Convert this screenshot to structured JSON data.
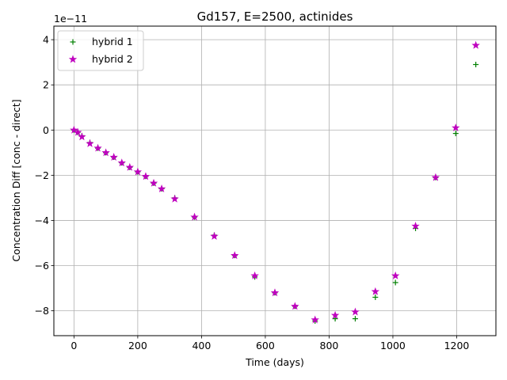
{
  "chart_data": {
    "type": "scatter",
    "title": "Gd157, E=2500, actinides",
    "xlabel": "Time (days)",
    "ylabel": "Concentration Diff [conc - direct]",
    "y_offset_label": "1e−11",
    "xlim": [
      -63,
      1323
    ],
    "ylim": [
      -9.1,
      4.6
    ],
    "y_scale_exponent": -11,
    "xticks": [
      0,
      200,
      400,
      600,
      800,
      1000,
      1200
    ],
    "yticks": [
      -8,
      -6,
      -4,
      -2,
      0,
      2,
      4
    ],
    "xtick_labels": [
      "0",
      "200",
      "400",
      "600",
      "800",
      "1000",
      "1200"
    ],
    "ytick_labels": [
      "−8",
      "−6",
      "−4",
      "−2",
      "0",
      "2",
      "4"
    ],
    "grid": true,
    "legend_position": "top-left",
    "series": [
      {
        "name": "hybrid 1",
        "marker": "plus",
        "color": "#008000",
        "x": [
          0,
          12,
          25,
          50,
          75,
          100,
          125,
          150,
          175,
          200,
          225,
          250,
          275,
          316,
          378,
          440,
          504,
          567,
          630,
          693,
          756,
          819,
          882,
          945,
          1008,
          1071,
          1134,
          1197,
          1260
        ],
        "y": [
          0.0,
          -0.1,
          -0.25,
          -0.55,
          -0.8,
          -1.0,
          -1.2,
          -1.45,
          -1.65,
          -1.85,
          -2.05,
          -2.35,
          -2.6,
          -3.0,
          -3.85,
          -4.65,
          -5.55,
          -6.5,
          -7.2,
          -7.8,
          -8.45,
          -8.35,
          -8.35,
          -7.4,
          -6.75,
          -4.35,
          -2.1,
          -0.15,
          2.9
        ]
      },
      {
        "name": "hybrid 2",
        "marker": "star",
        "color": "#bf00bf",
        "x": [
          0,
          12,
          25,
          50,
          75,
          100,
          125,
          150,
          175,
          200,
          225,
          250,
          275,
          316,
          378,
          440,
          504,
          567,
          630,
          693,
          756,
          819,
          882,
          945,
          1008,
          1071,
          1134,
          1197,
          1260
        ],
        "y": [
          0.0,
          -0.1,
          -0.3,
          -0.6,
          -0.8,
          -1.0,
          -1.2,
          -1.45,
          -1.65,
          -1.85,
          -2.05,
          -2.35,
          -2.6,
          -3.05,
          -3.85,
          -4.7,
          -5.55,
          -6.45,
          -7.2,
          -7.8,
          -8.4,
          -8.2,
          -8.05,
          -7.15,
          -6.45,
          -4.25,
          -2.1,
          0.1,
          3.75
        ]
      }
    ]
  }
}
